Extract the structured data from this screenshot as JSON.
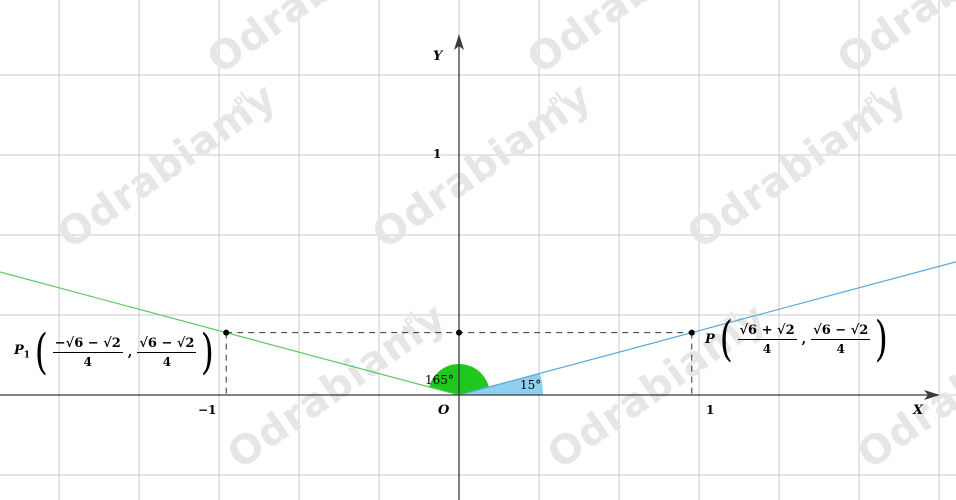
{
  "axes": {
    "x_label": "X",
    "y_label": "Y",
    "origin_label": "O",
    "tick_x_neg": "−1",
    "tick_x_pos": "1",
    "tick_y_pos": "1"
  },
  "points": {
    "P": {
      "name": "P",
      "x_num": "√6 + √2",
      "x_den": "4",
      "y_num": "√6 − √2",
      "y_den": "4"
    },
    "P1": {
      "name": "P",
      "subscript": "1",
      "x_num": "−√6 − √2",
      "x_den": "4",
      "y_num": "√6 − √2",
      "y_den": "4"
    }
  },
  "angles": {
    "blue": {
      "label": "15°",
      "degrees": 15
    },
    "green": {
      "label": "165°",
      "degrees": 165
    }
  },
  "colors": {
    "blue_ray": "#58a8dc",
    "blue_fill": "#8fcff0",
    "green_ray": "#5ec95e",
    "green_fill": "#1ec81e",
    "grid": "#c9c9c9",
    "axis": "#3a3a3a"
  },
  "watermark": {
    "text": "Odrabiamy",
    "suffix": ".pl"
  }
}
